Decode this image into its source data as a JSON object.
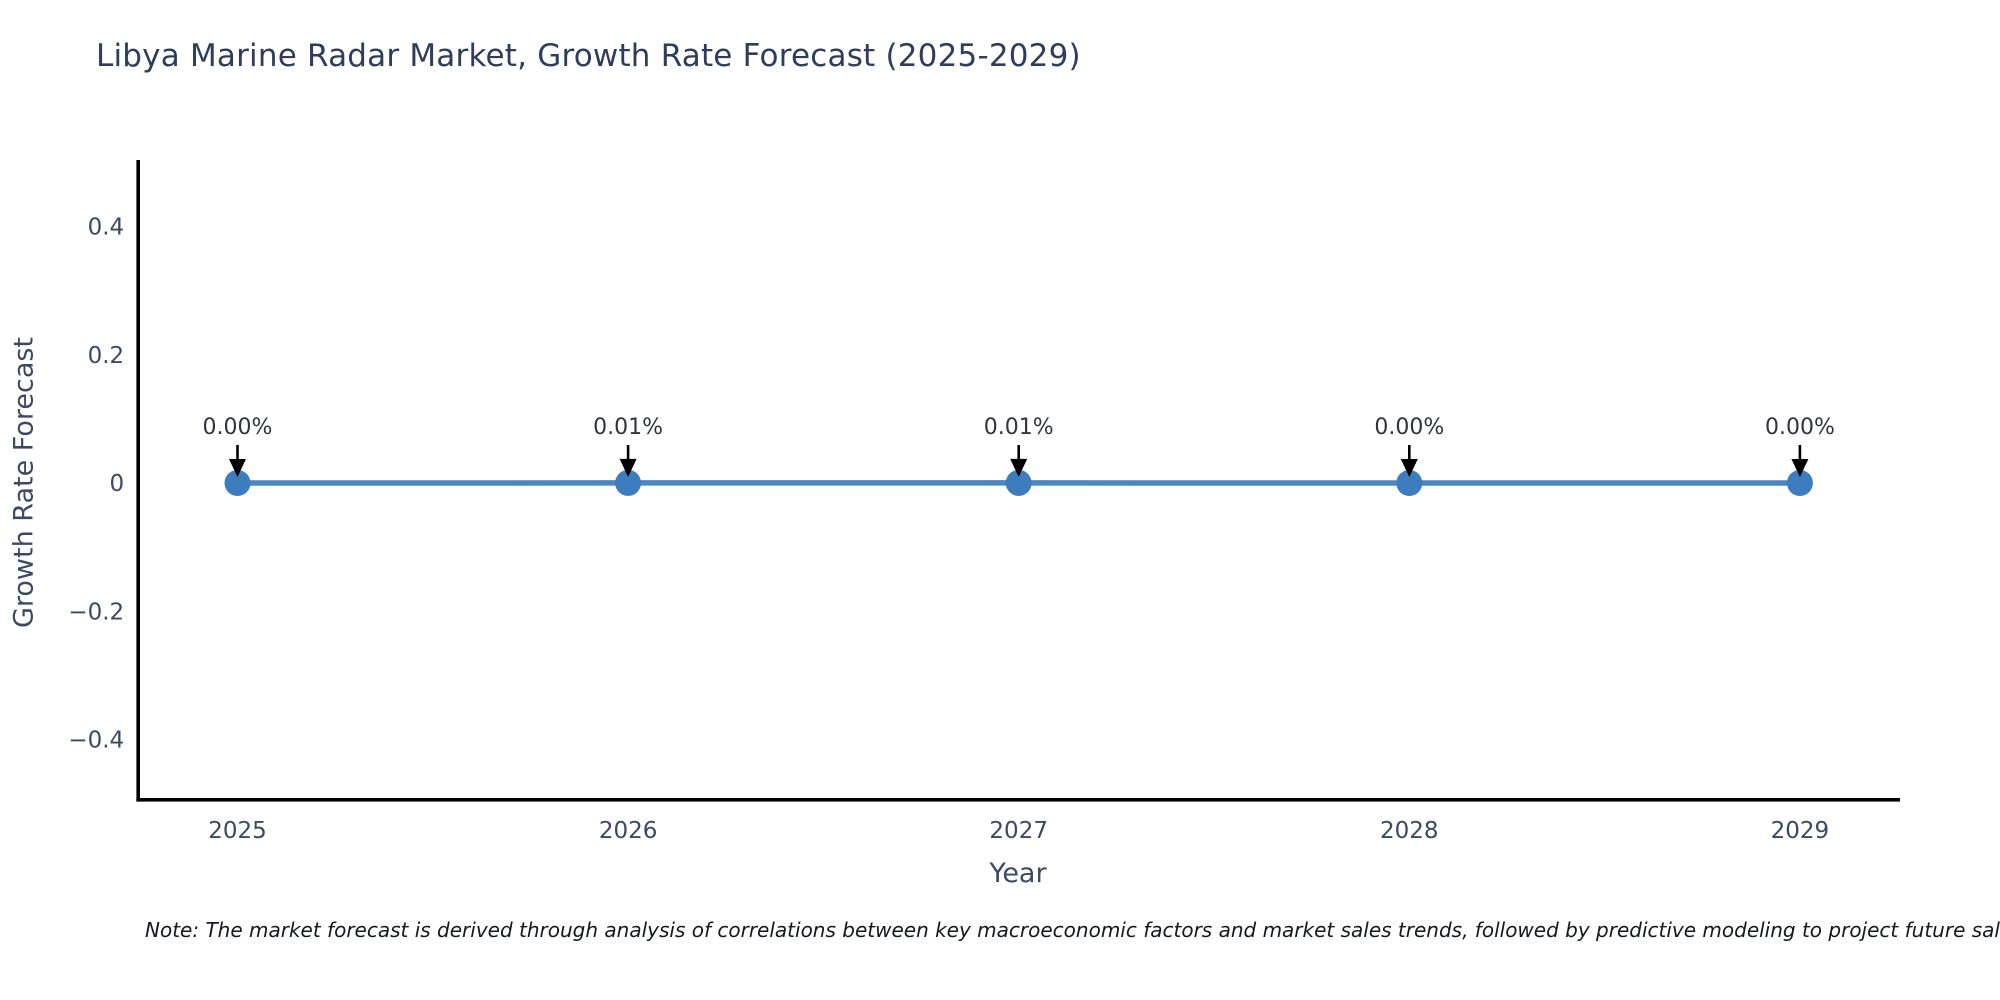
{
  "page": {
    "title": "Libya Marine Radar Market, Growth Rate Forecast (2025-2029)",
    "footnote": "Note: The market forecast is derived through analysis of correlations between key macroeconomic factors and market sales trends, followed by predictive modeling to project future sales."
  },
  "chart_data": {
    "type": "line",
    "title": "Libya Marine Radar Market, Growth Rate Forecast (2025-2029)",
    "xlabel": "Year",
    "ylabel": "Growth Rate Forecast",
    "categories": [
      "2025",
      "2026",
      "2027",
      "2028",
      "2029"
    ],
    "series": [
      {
        "name": "Growth Rate Forecast",
        "values": [
          0.0,
          0.0001,
          0.0001,
          0.0,
          0.0
        ]
      }
    ],
    "point_labels": [
      "0.00%",
      "0.01%",
      "0.01%",
      "0.00%",
      "0.00%"
    ],
    "ytick_values": [
      0.4,
      0.2,
      0,
      -0.2,
      -0.4
    ],
    "ytick_labels": [
      "0.4",
      "0.2",
      "0",
      "−0.2",
      "−0.4"
    ],
    "ylim": [
      -0.5,
      0.5
    ],
    "grid": false,
    "legend_position": "none",
    "colors": {
      "line": "#4d86c0",
      "marker": "#3d7dbd",
      "axis": "#000000",
      "tick_text": "#3b4a63",
      "annotation_text": "#2f3540",
      "annotation_arrow": "#000000"
    }
  }
}
